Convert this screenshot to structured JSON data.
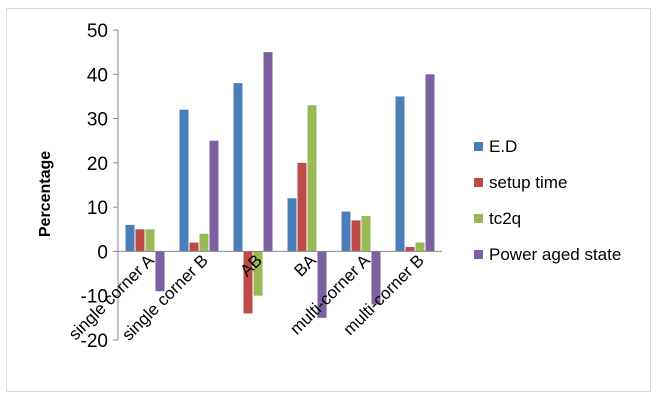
{
  "chart_data": {
    "type": "bar",
    "title": "",
    "xlabel": "",
    "ylabel": "Percentage",
    "ylim": [
      -20,
      50
    ],
    "yticks": [
      -20,
      -10,
      0,
      10,
      20,
      30,
      40,
      50
    ],
    "grid": false,
    "legend_position": "right",
    "categories": [
      "single corner A",
      "single corner B",
      "AB",
      "BA",
      "multi-corner A",
      "multi-corner B"
    ],
    "series": [
      {
        "name": "E.D",
        "color": "#4a7ebb",
        "values": [
          6,
          32,
          38,
          12,
          9,
          35
        ]
      },
      {
        "name": "setup time",
        "color": "#be4b48",
        "values": [
          5,
          2,
          -14,
          20,
          7,
          1
        ]
      },
      {
        "name": "tc2q",
        "color": "#98b954",
        "values": [
          5,
          4,
          -10,
          33,
          8,
          2
        ]
      },
      {
        "name": "Power aged state",
        "color": "#7d60a0",
        "values": [
          -9,
          25,
          45,
          -15,
          -12,
          40
        ]
      }
    ]
  }
}
